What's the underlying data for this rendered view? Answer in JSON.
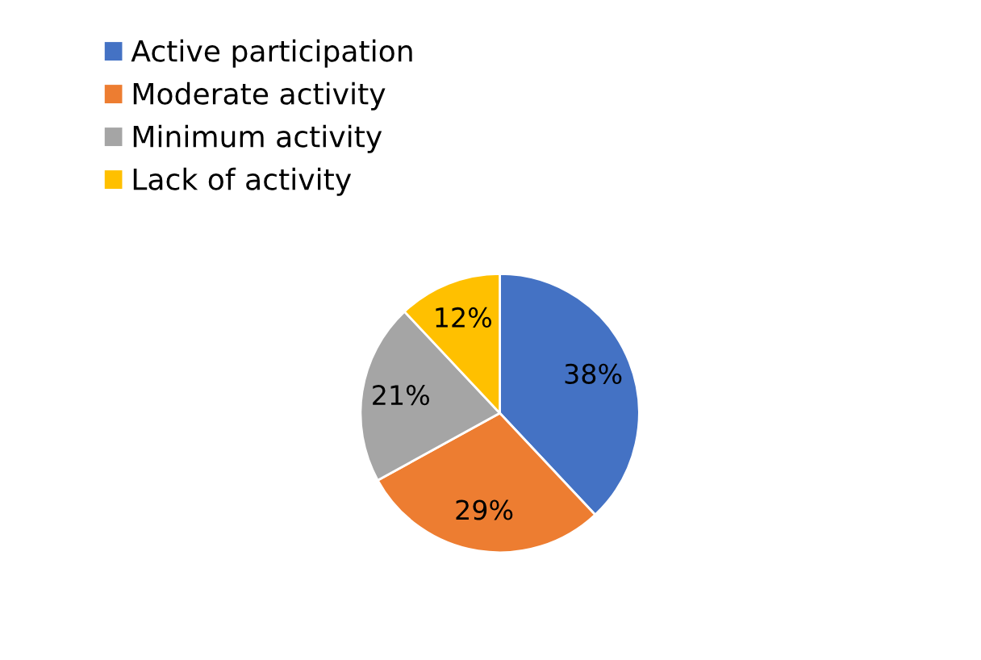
{
  "chart_data": {
    "type": "pie",
    "categories": [
      "Active participation",
      "Moderate activity",
      "Minimum activity",
      "Lack of activity"
    ],
    "values": [
      38,
      29,
      21,
      12
    ],
    "value_labels": [
      "38%",
      "29%",
      "21%",
      "12%"
    ],
    "colors": [
      "#4472c4",
      "#ed7d31",
      "#a5a5a5",
      "#ffc000"
    ],
    "legend": "top left"
  }
}
